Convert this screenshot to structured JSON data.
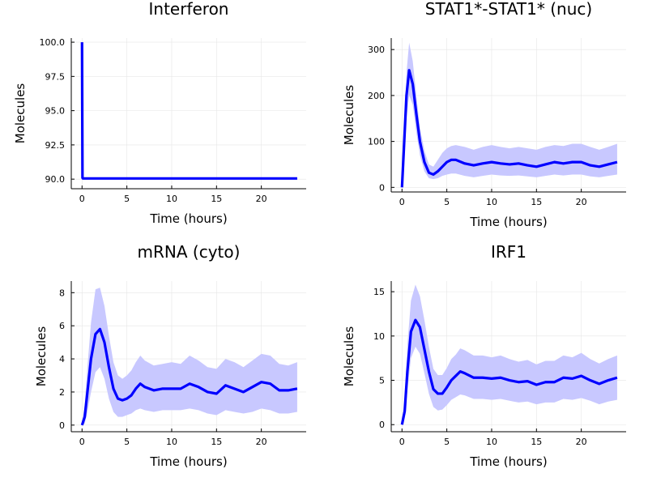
{
  "colors": {
    "line": "#0000ff",
    "band": "#c8c8ff"
  },
  "chart_data": [
    {
      "type": "line",
      "title": "Interferon",
      "xlabel": "Time (hours)",
      "ylabel": "Molecules",
      "xlim": [
        -1.2,
        25
      ],
      "ylim": [
        89.3,
        100.3
      ],
      "x_ticks": [
        0,
        5,
        10,
        15,
        20
      ],
      "y_ticks": [
        90.0,
        92.5,
        95.0,
        97.5,
        100.0
      ],
      "y_tick_labels": [
        "90.0",
        "92.5",
        "95.0",
        "97.5",
        "100.0"
      ],
      "grid": true,
      "legend": "none",
      "series": [
        {
          "x": [
            0,
            0.05,
            0.1,
            1,
            2,
            4,
            6,
            8,
            10,
            12,
            14,
            16,
            18,
            20,
            22,
            24
          ],
          "y": [
            100,
            90.1,
            90.05,
            90.05,
            90.05,
            90.05,
            90.05,
            90.05,
            90.05,
            90.05,
            90.05,
            90.05,
            90.05,
            90.05,
            90.05,
            90.05
          ],
          "lower": [
            100,
            90.0,
            90.0,
            90.0,
            90.0,
            90.0,
            90.0,
            90.0,
            90.0,
            90.0,
            90.0,
            90.0,
            90.0,
            90.0,
            90.0,
            90.0
          ],
          "upper": [
            100,
            90.15,
            90.12,
            90.12,
            90.12,
            90.12,
            90.12,
            90.12,
            90.12,
            90.12,
            90.12,
            90.12,
            90.12,
            90.12,
            90.12,
            90.12
          ]
        }
      ]
    },
    {
      "type": "line",
      "title": "STAT1*-STAT1* (nuc)",
      "xlabel": "Time (hours)",
      "ylabel": "Molecules",
      "xlim": [
        -1.2,
        25
      ],
      "ylim": [
        -10,
        325
      ],
      "x_ticks": [
        0,
        5,
        10,
        15,
        20
      ],
      "y_ticks": [
        0,
        100,
        200,
        300
      ],
      "y_tick_labels": [
        "0",
        "100",
        "200",
        "300"
      ],
      "grid": true,
      "legend": "none",
      "series": [
        {
          "x": [
            0,
            0.2,
            0.5,
            0.8,
            1.2,
            1.6,
            2.0,
            2.5,
            3.0,
            3.5,
            4.0,
            4.5,
            5.0,
            5.5,
            6.0,
            7.0,
            8.0,
            9.0,
            10.0,
            11.0,
            12.0,
            13.0,
            14.0,
            15.0,
            16.0,
            17.0,
            18.0,
            19.0,
            20.0,
            21.0,
            22.0,
            23.0,
            24.0
          ],
          "y": [
            0,
            80,
            200,
            255,
            225,
            160,
            100,
            55,
            32,
            28,
            35,
            45,
            55,
            60,
            60,
            52,
            48,
            52,
            55,
            52,
            50,
            52,
            48,
            45,
            50,
            55,
            52,
            55,
            55,
            48,
            45,
            50,
            55
          ],
          "lower": [
            0,
            60,
            150,
            200,
            180,
            120,
            70,
            35,
            20,
            18,
            20,
            25,
            28,
            30,
            30,
            25,
            22,
            25,
            28,
            26,
            25,
            26,
            24,
            22,
            25,
            28,
            26,
            28,
            28,
            24,
            22,
            25,
            28
          ],
          "upper": [
            0,
            100,
            250,
            315,
            275,
            200,
            130,
            80,
            50,
            45,
            60,
            75,
            85,
            90,
            92,
            88,
            82,
            88,
            92,
            88,
            85,
            88,
            85,
            82,
            88,
            92,
            90,
            95,
            95,
            88,
            82,
            88,
            95
          ]
        }
      ]
    },
    {
      "type": "line",
      "title": "mRNA (cyto)",
      "xlabel": "Time (hours)",
      "ylabel": "Molecules",
      "xlim": [
        -1.2,
        25
      ],
      "ylim": [
        -0.4,
        8.7
      ],
      "x_ticks": [
        0,
        5,
        10,
        15,
        20
      ],
      "y_ticks": [
        0,
        2,
        4,
        6,
        8
      ],
      "y_tick_labels": [
        "0",
        "2",
        "4",
        "6",
        "8"
      ],
      "grid": true,
      "legend": "none",
      "series": [
        {
          "x": [
            0,
            0.3,
            0.6,
            1.0,
            1.5,
            2.0,
            2.5,
            3.0,
            3.5,
            4.0,
            4.5,
            5.0,
            5.5,
            6.0,
            6.5,
            7.0,
            8.0,
            9.0,
            10.0,
            11.0,
            12.0,
            13.0,
            14.0,
            15.0,
            16.0,
            17.0,
            18.0,
            19.0,
            20.0,
            21.0,
            22.0,
            23.0,
            24.0
          ],
          "y": [
            0,
            0.5,
            2.0,
            4.0,
            5.5,
            5.8,
            5.0,
            3.5,
            2.2,
            1.6,
            1.5,
            1.6,
            1.8,
            2.2,
            2.5,
            2.3,
            2.1,
            2.2,
            2.2,
            2.2,
            2.5,
            2.3,
            2.0,
            1.9,
            2.4,
            2.2,
            2.0,
            2.3,
            2.6,
            2.5,
            2.1,
            2.1,
            2.2
          ],
          "lower": [
            0,
            0.1,
            0.8,
            2.0,
            3.2,
            3.5,
            2.8,
            1.6,
            0.8,
            0.5,
            0.5,
            0.6,
            0.7,
            0.9,
            1.0,
            0.9,
            0.8,
            0.9,
            0.9,
            0.9,
            1.0,
            0.9,
            0.7,
            0.6,
            0.9,
            0.8,
            0.7,
            0.8,
            1.0,
            0.9,
            0.7,
            0.7,
            0.8
          ],
          "upper": [
            0.2,
            1.2,
            3.5,
            6.2,
            8.2,
            8.3,
            7.2,
            5.4,
            3.8,
            3.0,
            2.8,
            3.0,
            3.3,
            3.8,
            4.2,
            3.9,
            3.6,
            3.7,
            3.8,
            3.7,
            4.2,
            3.9,
            3.5,
            3.4,
            4.0,
            3.8,
            3.5,
            3.9,
            4.3,
            4.2,
            3.7,
            3.6,
            3.8
          ]
        }
      ]
    },
    {
      "type": "line",
      "title": "IRF1",
      "xlabel": "Time (hours)",
      "ylabel": "Molecules",
      "xlim": [
        -1.2,
        25
      ],
      "ylim": [
        -0.8,
        16.2
      ],
      "x_ticks": [
        0,
        5,
        10,
        15,
        20
      ],
      "y_ticks": [
        0,
        5,
        10,
        15
      ],
      "y_tick_labels": [
        "0",
        "5",
        "10",
        "15"
      ],
      "grid": true,
      "legend": "none",
      "series": [
        {
          "x": [
            0,
            0.3,
            0.6,
            1.0,
            1.5,
            2.0,
            2.5,
            3.0,
            3.5,
            4.0,
            4.5,
            5.0,
            5.5,
            6.0,
            6.5,
            7.0,
            8.0,
            9.0,
            10.0,
            11.0,
            12.0,
            13.0,
            14.0,
            15.0,
            16.0,
            17.0,
            18.0,
            19.0,
            20.0,
            21.0,
            22.0,
            23.0,
            24.0
          ],
          "y": [
            0,
            1.5,
            6.0,
            10.5,
            11.8,
            11.0,
            8.5,
            6.0,
            4.0,
            3.5,
            3.5,
            4.2,
            5.0,
            5.5,
            6.0,
            5.8,
            5.3,
            5.3,
            5.2,
            5.3,
            5.0,
            4.8,
            4.9,
            4.5,
            4.8,
            4.8,
            5.3,
            5.2,
            5.5,
            5.0,
            4.6,
            5.0,
            5.3
          ],
          "lower": [
            0,
            0.8,
            3.8,
            7.5,
            8.8,
            8.0,
            5.8,
            3.5,
            2.0,
            1.6,
            1.7,
            2.2,
            2.8,
            3.1,
            3.4,
            3.3,
            2.9,
            2.9,
            2.8,
            2.9,
            2.7,
            2.5,
            2.6,
            2.3,
            2.5,
            2.5,
            2.9,
            2.8,
            3.0,
            2.7,
            2.3,
            2.6,
            2.8
          ],
          "upper": [
            0.2,
            2.8,
            9.0,
            14.0,
            15.8,
            14.5,
            11.8,
            8.8,
            6.3,
            5.6,
            5.6,
            6.4,
            7.4,
            7.9,
            8.6,
            8.4,
            7.8,
            7.8,
            7.6,
            7.8,
            7.4,
            7.1,
            7.3,
            6.8,
            7.2,
            7.2,
            7.8,
            7.6,
            8.1,
            7.4,
            6.9,
            7.4,
            7.8
          ]
        }
      ]
    }
  ]
}
